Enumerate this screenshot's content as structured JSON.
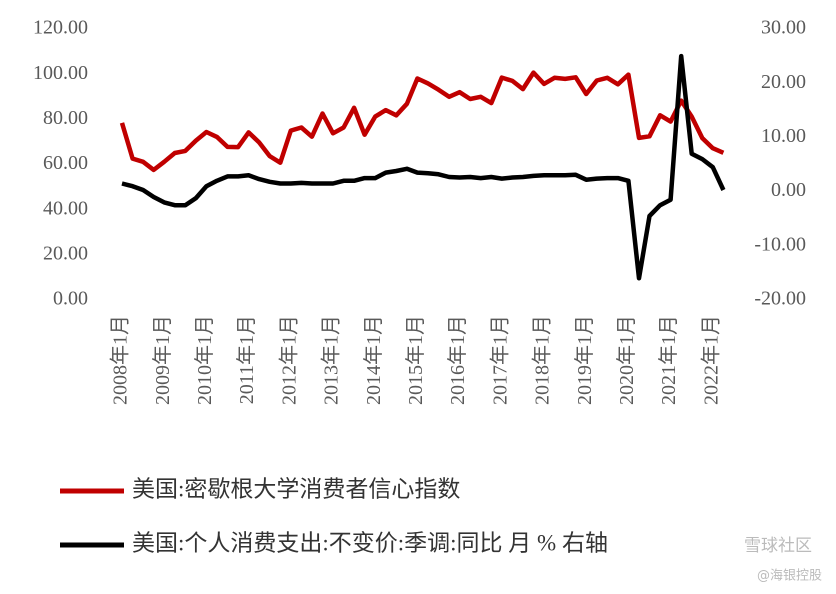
{
  "chart_data": {
    "type": "line",
    "categories": [
      "2008年1月",
      null,
      null,
      null,
      "2009年1月",
      null,
      null,
      null,
      "2010年1月",
      null,
      null,
      null,
      "2011年1月",
      null,
      null,
      null,
      "2012年1月",
      null,
      null,
      null,
      "2013年1月",
      null,
      null,
      null,
      "2014年1月",
      null,
      null,
      null,
      "2015年1月",
      null,
      null,
      null,
      "2016年1月",
      null,
      null,
      null,
      "2017年1月",
      null,
      null,
      null,
      "2018年1月",
      null,
      null,
      null,
      "2019年1月",
      null,
      null,
      null,
      "2020年1月",
      null,
      null,
      null,
      "2021年1月",
      null,
      null,
      null,
      "2022年1月",
      null
    ],
    "series": [
      {
        "name": "美国:密歇根大学消费者信心指数",
        "color": "#c00000",
        "values": [
          78.4,
          62.6,
          61.2,
          57.6,
          61.2,
          65.1,
          66.0,
          70.6,
          74.4,
          72.2,
          67.8,
          67.7,
          74.2,
          69.8,
          63.7,
          60.8,
          75.0,
          76.4,
          72.3,
          82.6,
          73.8,
          76.4,
          85.1,
          73.2,
          81.2,
          84.1,
          81.8,
          86.9,
          98.1,
          95.9,
          93.1,
          90.0,
          92.0,
          89.0,
          90.0,
          87.2,
          98.5,
          97.0,
          93.4,
          100.7,
          95.7,
          98.4,
          97.9,
          98.6,
          91.2,
          97.2,
          98.4,
          95.5,
          99.8,
          71.8,
          72.5,
          81.8,
          79.0,
          88.3,
          81.2,
          71.7,
          67.2,
          65.2
        ]
      },
      {
        "name": "美国:个人消费支出:不变价:季调:同比 月 % 右轴",
        "color": "#000000",
        "axis": "y2",
        "values": [
          1.5,
          1.0,
          0.3,
          -1.0,
          -2.0,
          -2.5,
          -2.5,
          -1.2,
          1.0,
          2.0,
          2.8,
          2.8,
          3.0,
          2.3,
          1.8,
          1.5,
          1.5,
          1.6,
          1.5,
          1.5,
          1.5,
          2.0,
          2.0,
          2.5,
          2.5,
          3.5,
          3.8,
          4.2,
          3.5,
          3.4,
          3.2,
          2.7,
          2.6,
          2.7,
          2.5,
          2.7,
          2.4,
          2.6,
          2.7,
          2.9,
          3.0,
          3.0,
          3.0,
          3.1,
          2.2,
          2.4,
          2.5,
          2.5,
          2.0,
          -16.0,
          -4.5,
          -2.5,
          -1.5,
          25.0,
          7.0,
          6.0,
          4.5,
          0.3
        ]
      }
    ],
    "ylim": [
      0,
      120
    ],
    "yticks": [
      {
        "value": 0,
        "label": "0.00"
      },
      {
        "value": 20,
        "label": "20.00"
      },
      {
        "value": 40,
        "label": "40.00"
      },
      {
        "value": 60,
        "label": "60.00"
      },
      {
        "value": 80,
        "label": "80.00"
      },
      {
        "value": 100,
        "label": "100.00"
      },
      {
        "value": 120,
        "label": "120.00"
      }
    ],
    "y2lim": [
      -20,
      30
    ],
    "y2ticks": [
      {
        "value": -20,
        "label": "-20.00"
      },
      {
        "value": -10,
        "label": "-10.00"
      },
      {
        "value": 0,
        "label": "0.00"
      },
      {
        "value": 10,
        "label": "10.00"
      },
      {
        "value": 20,
        "label": "20.00"
      },
      {
        "value": 30,
        "label": "30.00"
      }
    ],
    "grid": false,
    "annotations": [
      "雪球社区",
      "@海银控股"
    ]
  }
}
